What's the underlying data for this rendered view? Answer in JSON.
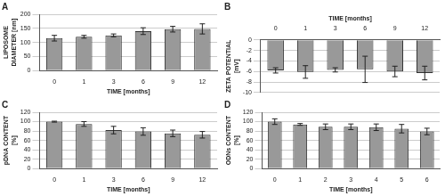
{
  "chart_data": [
    {
      "type": "bar",
      "title": "A",
      "x_label": "TIME [months]",
      "y_label": "LIPOSOME DIAMETER [nm]",
      "categories": [
        "0",
        "1",
        "3",
        "6",
        "9",
        "12"
      ],
      "values": [
        115,
        120,
        125,
        140,
        147,
        148
      ],
      "errors": [
        10,
        5,
        5,
        12,
        10,
        18
      ],
      "color": "#999999",
      "ylim": [
        0,
        200
      ],
      "yticks": [
        0,
        50,
        100,
        150,
        200
      ],
      "grid": true
    },
    {
      "type": "bar",
      "title": "B",
      "x_label": "TIME [months]",
      "y_label": "ZETA POTENTIAL [mV]",
      "categories": [
        "0",
        "1",
        "3",
        "6",
        "9",
        "12"
      ],
      "values": [
        -5.8,
        -6.1,
        -5.7,
        -5.6,
        -6.0,
        -6.3
      ],
      "errors": [
        0.5,
        1.2,
        0.4,
        2.5,
        1.0,
        1.3
      ],
      "color": "#999999",
      "ylim": [
        -10,
        0
      ],
      "yticks": [
        -10,
        -8,
        -6,
        -4,
        -2,
        0
      ],
      "grid": true
    },
    {
      "type": "bar",
      "title": "C",
      "x_label": "TIME [months]",
      "y_label": "pDNA CONTENT [%]",
      "categories": [
        "0",
        "1",
        "3",
        "6",
        "9",
        "12"
      ],
      "values": [
        100,
        95,
        82,
        79,
        75,
        72
      ],
      "errors": [
        1,
        5,
        8,
        8,
        7,
        7
      ],
      "color": "#999999",
      "ylim": [
        0,
        120
      ],
      "yticks": [
        0,
        20,
        40,
        60,
        80,
        100,
        120
      ],
      "grid": true
    },
    {
      "type": "bar",
      "title": "D",
      "x_label": "TIME [months]",
      "y_label": "ODNs CONTENT [%]",
      "categories": [
        "0",
        "1",
        "2",
        "3",
        "4",
        "5",
        "6"
      ],
      "values": [
        100,
        94,
        89,
        89,
        88,
        85,
        79
      ],
      "errors": [
        6,
        2,
        6,
        6,
        7,
        9,
        7
      ],
      "color": "#999999",
      "ylim": [
        0,
        120
      ],
      "yticks": [
        0,
        20,
        40,
        60,
        80,
        100,
        120
      ],
      "grid": true
    }
  ]
}
